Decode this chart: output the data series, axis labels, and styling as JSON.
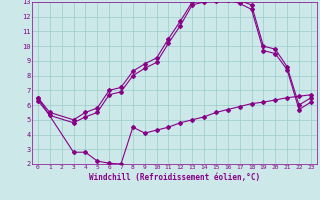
{
  "xlabel": "Windchill (Refroidissement éolien,°C)",
  "xlim": [
    -0.5,
    23.5
  ],
  "ylim": [
    2,
    13
  ],
  "xticks": [
    0,
    1,
    2,
    3,
    4,
    5,
    6,
    7,
    8,
    9,
    10,
    11,
    12,
    13,
    14,
    15,
    16,
    17,
    18,
    19,
    20,
    21,
    22,
    23
  ],
  "yticks": [
    2,
    3,
    4,
    5,
    6,
    7,
    8,
    9,
    10,
    11,
    12,
    13
  ],
  "bg_color": "#cce8e8",
  "line_color": "#880088",
  "grid_color": "#99cccc",
  "line_width": 0.8,
  "marker": "D",
  "marker_size": 2.0,
  "curves": [
    {
      "x": [
        0,
        1,
        3,
        4,
        5,
        6,
        7,
        8,
        9,
        10,
        11,
        12,
        13,
        14,
        15,
        16,
        17,
        18,
        19,
        20,
        21,
        22,
        23
      ],
      "y": [
        6.5,
        5.5,
        5.0,
        5.5,
        5.8,
        7.0,
        7.2,
        8.3,
        8.8,
        9.2,
        10.5,
        11.7,
        13.0,
        13.2,
        13.35,
        13.35,
        13.1,
        12.8,
        10.0,
        9.8,
        8.6,
        6.0,
        6.5
      ]
    },
    {
      "x": [
        0,
        1,
        3,
        4,
        5,
        6,
        7,
        8,
        9,
        10,
        11,
        12,
        13,
        14,
        15,
        16,
        17,
        18,
        19,
        20,
        21,
        22,
        23
      ],
      "y": [
        6.3,
        5.3,
        4.8,
        5.2,
        5.5,
        6.7,
        6.9,
        8.0,
        8.5,
        8.9,
        10.2,
        11.4,
        12.8,
        13.0,
        13.1,
        13.15,
        12.9,
        12.5,
        9.7,
        9.5,
        8.4,
        5.7,
        6.2
      ]
    },
    {
      "x": [
        0,
        3,
        4,
        5,
        6,
        7,
        8,
        9,
        10,
        11,
        12,
        13,
        14,
        15,
        16,
        17,
        18,
        19,
        20,
        21,
        22,
        23
      ],
      "y": [
        6.5,
        2.8,
        2.8,
        2.2,
        2.05,
        2.0,
        4.5,
        4.1,
        4.3,
        4.5,
        4.8,
        5.0,
        5.2,
        5.5,
        5.7,
        5.9,
        6.1,
        6.2,
        6.35,
        6.5,
        6.6,
        6.7
      ]
    }
  ]
}
